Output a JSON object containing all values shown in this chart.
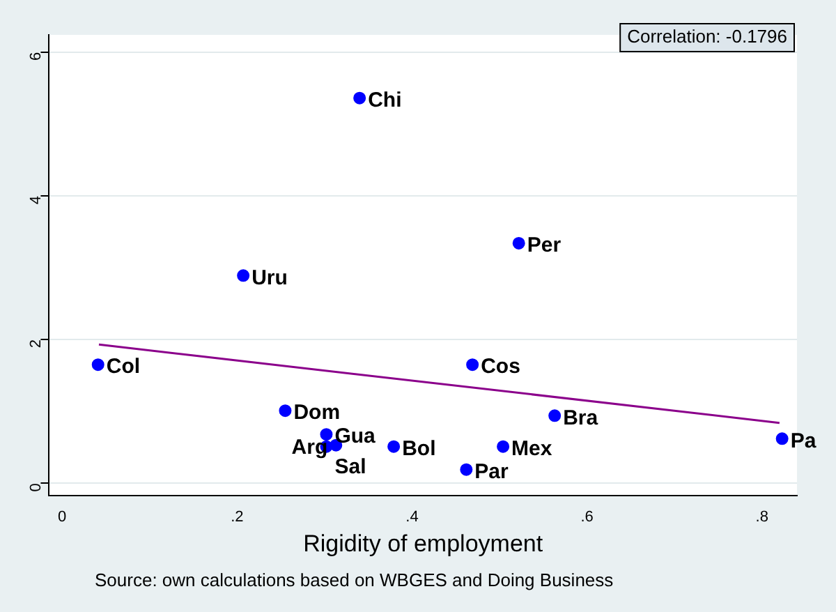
{
  "chart_data": {
    "type": "scatter",
    "xlabel": "Rigidity of employment",
    "series": [
      {
        "marker": "circle",
        "color": "#0000ff",
        "x": [
          0.34,
          0.522,
          0.207,
          0.041,
          0.469,
          0.255,
          0.563,
          0.302,
          0.302,
          0.313,
          0.379,
          0.504,
          0.462,
          0.823
        ],
        "values": [
          5.36,
          3.34,
          2.89,
          1.65,
          1.65,
          1.01,
          0.94,
          0.68,
          0.51,
          0.53,
          0.51,
          0.51,
          0.19,
          0.62
        ]
      },
      {
        "type": "line",
        "color": "#8b008b",
        "x": [
          0.042,
          0.82
        ],
        "values": [
          1.93,
          0.84
        ]
      }
    ],
    "xlim": [
      -0.015,
      0.84
    ],
    "ylim": [
      -0.17,
      6.24
    ],
    "xticks": [
      0,
      {
        "value": 0.2,
        "label": ".2"
      },
      {
        "value": 0.4,
        "label": ".4"
      },
      {
        "value": 0.6,
        "label": ".6"
      },
      {
        "value": 0.8,
        "label": ".8"
      }
    ],
    "yticks": [
      0,
      2,
      4,
      6
    ],
    "grid": "y",
    "legend": false,
    "annotations": [
      "Correlation: -0.1796",
      "Source: own calculations based on WBGES and Doing Business",
      {
        "text": "Chi",
        "x": 0.34,
        "y": 5.36
      },
      {
        "text": "Per",
        "x": 0.522,
        "y": 3.34
      },
      {
        "text": "Uru",
        "x": 0.207,
        "y": 2.89
      },
      {
        "text": "Col",
        "x": 0.041,
        "y": 1.65
      },
      {
        "text": "Cos",
        "x": 0.469,
        "y": 1.65
      },
      {
        "text": "Dom",
        "x": 0.255,
        "y": 1.01
      },
      {
        "text": "Bra",
        "x": 0.563,
        "y": 0.94
      },
      {
        "text": "Gua",
        "x": 0.302,
        "y": 0.68
      },
      {
        "text": "Sal",
        "x": 0.302,
        "y": 0.51
      },
      {
        "text": "Arg",
        "x": 0.313,
        "y": 0.53
      },
      {
        "text": "Bol",
        "x": 0.379,
        "y": 0.51
      },
      {
        "text": "Mex",
        "x": 0.504,
        "y": 0.51
      },
      {
        "text": "Par",
        "x": 0.462,
        "y": 0.19
      },
      {
        "text": "Pa",
        "x": 0.823,
        "y": 0.62
      }
    ]
  }
}
